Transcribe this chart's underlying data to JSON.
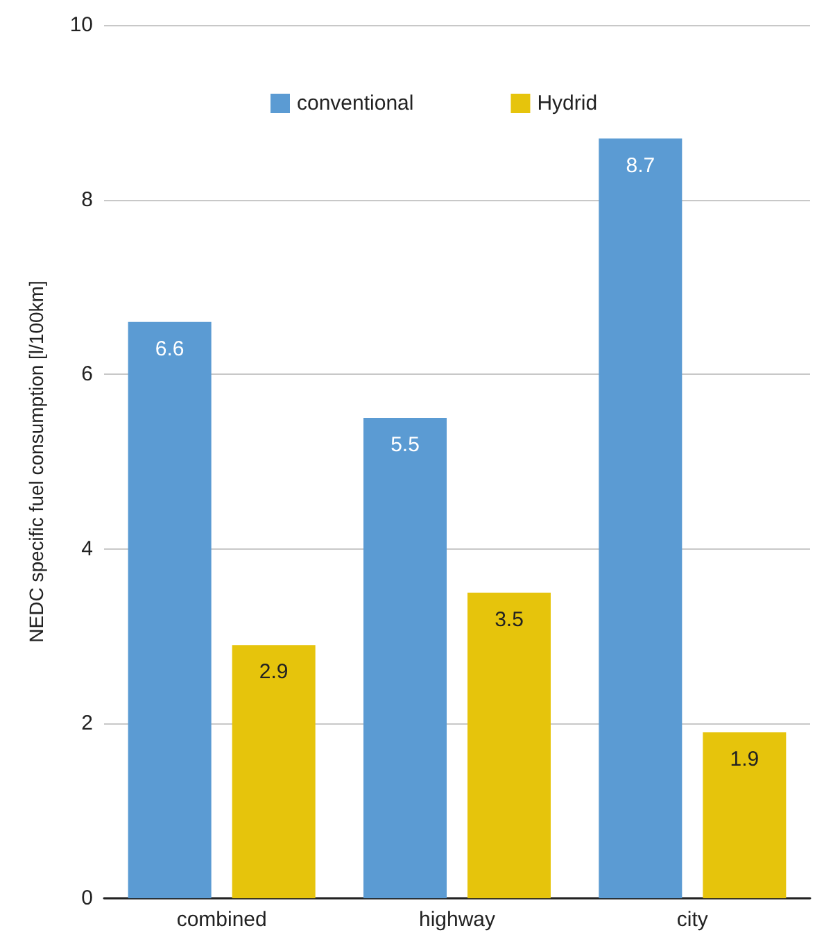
{
  "chart_data": {
    "type": "bar",
    "ylabel": "NEDC specific fuel consumption [l/100km]",
    "categories": [
      "combined",
      "highway",
      "city"
    ],
    "series": [
      {
        "name": "conventional",
        "color": "#5b9bd3",
        "values": [
          6.6,
          5.5,
          8.7
        ]
      },
      {
        "name": "Hydrid",
        "color": "#e6c40c",
        "values": [
          2.9,
          3.5,
          1.9
        ]
      }
    ],
    "ylim": [
      0,
      10
    ],
    "yticks": [
      0,
      2,
      4,
      6,
      8,
      10
    ],
    "grid": "y",
    "legend": "top",
    "data_labels": true
  }
}
